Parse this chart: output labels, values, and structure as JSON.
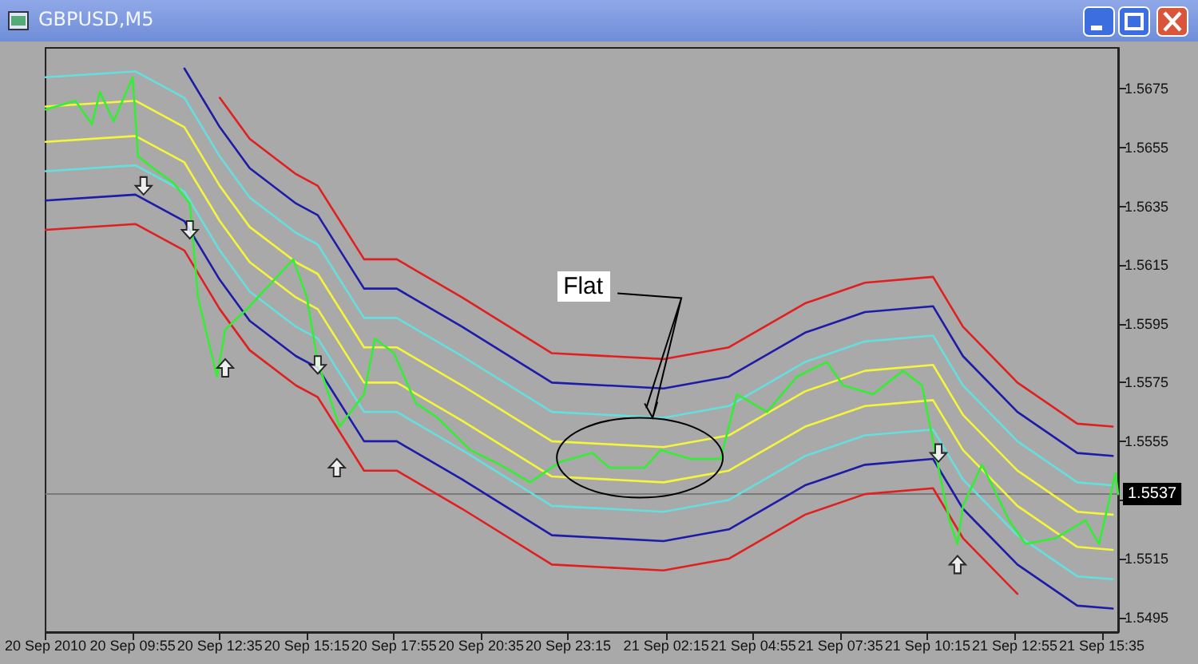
{
  "chart_data": {
    "type": "line",
    "title": "GBPUSD,M5",
    "xlim": [
      "2010-09-20T07:15",
      "2010-09-21T16:05"
    ],
    "xticks": [
      {
        "value": "2010-09-20T07:15",
        "label": "20 Sep 2010"
      },
      {
        "value": "2010-09-20T09:55",
        "label": "20 Sep 09:55"
      },
      {
        "value": "2010-09-20T12:35",
        "label": "20 Sep 12:35"
      },
      {
        "value": "2010-09-20T15:15",
        "label": "20 Sep 15:15"
      },
      {
        "value": "2010-09-20T17:55",
        "label": "20 Sep 17:55"
      },
      {
        "value": "2010-09-20T20:35",
        "label": "20 Sep 20:35"
      },
      {
        "value": "2010-09-20T23:15",
        "label": "20 Sep 23:15"
      },
      {
        "value": "2010-09-21T02:15",
        "label": "21 Sep 02:15"
      },
      {
        "value": "2010-09-21T04:55",
        "label": "21 Sep 04:55"
      },
      {
        "value": "2010-09-21T07:35",
        "label": "21 Sep 07:35"
      },
      {
        "value": "2010-09-21T10:15",
        "label": "21 Sep 10:15"
      },
      {
        "value": "2010-09-21T12:55",
        "label": "21 Sep 12:55"
      },
      {
        "value": "2010-09-21T15:35",
        "label": "21 Sep 15:35"
      }
    ],
    "ylim": [
      1.549,
      1.5689
    ],
    "yticks": [
      1.5495,
      1.5515,
      {
        "value": 1.5535,
        "label": null
      },
      1.5555,
      1.5575,
      1.5595,
      1.5615,
      1.5635,
      1.5655,
      1.5675
    ],
    "grid": false,
    "line_style": "solid",
    "series": [
      {
        "color": "#e02020",
        "x": [
          "2010-09-20T12:35",
          "2010-09-20T13:30",
          "2010-09-20T14:55",
          "2010-09-20T15:35",
          "2010-09-20T17:00",
          "2010-09-20T18:00",
          "2010-09-20T20:00",
          "2010-09-20T22:45",
          "2010-09-21T02:10",
          "2010-09-21T04:10",
          "2010-09-21T06:30",
          "2010-09-21T08:20",
          "2010-09-21T10:25",
          "2010-09-21T11:20",
          "2010-09-21T13:00",
          "2010-09-21T14:50",
          "2010-09-21T15:55"
        ],
        "values": [
          1.5672,
          1.5658,
          1.5646,
          1.5642,
          1.5617,
          1.5617,
          1.5604,
          1.5585,
          1.5583,
          1.5587,
          1.5602,
          1.5609,
          1.5611,
          1.5594,
          1.5575,
          1.5561,
          1.556
        ]
      },
      {
        "color": "#1c1ca8",
        "x": [
          "2010-09-20T11:30",
          "2010-09-20T12:35",
          "2010-09-20T13:30",
          "2010-09-20T14:55",
          "2010-09-20T15:35",
          "2010-09-20T17:00",
          "2010-09-20T18:00",
          "2010-09-20T20:00",
          "2010-09-20T22:45",
          "2010-09-21T02:10",
          "2010-09-21T04:10",
          "2010-09-21T06:30",
          "2010-09-21T08:20",
          "2010-09-21T10:25",
          "2010-09-21T11:20",
          "2010-09-21T13:00",
          "2010-09-21T14:50",
          "2010-09-21T15:55"
        ],
        "values": [
          1.5682,
          1.5662,
          1.5648,
          1.5636,
          1.5632,
          1.5607,
          1.5607,
          1.5594,
          1.5575,
          1.5573,
          1.5577,
          1.5592,
          1.5599,
          1.5601,
          1.5584,
          1.5565,
          1.5551,
          1.555
        ]
      },
      {
        "color": "#66dede",
        "x": [
          "2010-09-20T07:15",
          "2010-09-20T10:00",
          "2010-09-20T11:30",
          "2010-09-20T12:35",
          "2010-09-20T13:30",
          "2010-09-20T14:55",
          "2010-09-20T15:35",
          "2010-09-20T17:00",
          "2010-09-20T18:00",
          "2010-09-20T20:00",
          "2010-09-20T22:45",
          "2010-09-21T02:10",
          "2010-09-21T04:10",
          "2010-09-21T06:30",
          "2010-09-21T08:20",
          "2010-09-21T10:25",
          "2010-09-21T11:20",
          "2010-09-21T13:00",
          "2010-09-21T14:50",
          "2010-09-21T15:55"
        ],
        "values": [
          1.5679,
          1.5681,
          1.5672,
          1.5652,
          1.5638,
          1.5626,
          1.5622,
          1.5597,
          1.5597,
          1.5584,
          1.5565,
          1.5563,
          1.5567,
          1.5582,
          1.5589,
          1.5591,
          1.5574,
          1.5555,
          1.5541,
          1.554
        ]
      },
      {
        "color": "#f5f53c",
        "x": [
          "2010-09-20T07:15",
          "2010-09-20T10:00",
          "2010-09-20T11:30",
          "2010-09-20T12:35",
          "2010-09-20T13:30",
          "2010-09-20T14:55",
          "2010-09-20T15:35",
          "2010-09-20T17:00",
          "2010-09-20T18:00",
          "2010-09-20T20:00",
          "2010-09-20T22:45",
          "2010-09-21T02:10",
          "2010-09-21T04:10",
          "2010-09-21T06:30",
          "2010-09-21T08:20",
          "2010-09-21T10:25",
          "2010-09-21T11:20",
          "2010-09-21T13:00",
          "2010-09-21T14:50",
          "2010-09-21T15:55"
        ],
        "values": [
          1.5669,
          1.5671,
          1.5662,
          1.5642,
          1.5628,
          1.5616,
          1.5612,
          1.5587,
          1.5587,
          1.5574,
          1.5555,
          1.5553,
          1.5557,
          1.5572,
          1.5579,
          1.5581,
          1.5564,
          1.5545,
          1.5531,
          1.553
        ]
      },
      {
        "color": "#f5f53c",
        "x": [
          "2010-09-20T07:15",
          "2010-09-20T10:00",
          "2010-09-20T11:30",
          "2010-09-20T12:35",
          "2010-09-20T13:30",
          "2010-09-20T14:55",
          "2010-09-20T15:35",
          "2010-09-20T17:00",
          "2010-09-20T18:00",
          "2010-09-20T20:00",
          "2010-09-20T22:45",
          "2010-09-21T02:10",
          "2010-09-21T04:10",
          "2010-09-21T06:30",
          "2010-09-21T08:20",
          "2010-09-21T10:25",
          "2010-09-21T11:20",
          "2010-09-21T13:00",
          "2010-09-21T14:50",
          "2010-09-21T15:55"
        ],
        "values": [
          1.5657,
          1.5659,
          1.565,
          1.563,
          1.5616,
          1.5604,
          1.56,
          1.5575,
          1.5575,
          1.5562,
          1.5543,
          1.5541,
          1.5545,
          1.556,
          1.5567,
          1.5569,
          1.5552,
          1.5533,
          1.5519,
          1.5518
        ]
      },
      {
        "color": "#66dede",
        "x": [
          "2010-09-20T07:15",
          "2010-09-20T10:00",
          "2010-09-20T11:30",
          "2010-09-20T12:35",
          "2010-09-20T13:30",
          "2010-09-20T14:55",
          "2010-09-20T15:35",
          "2010-09-20T17:00",
          "2010-09-20T18:00",
          "2010-09-20T20:00",
          "2010-09-20T22:45",
          "2010-09-21T02:10",
          "2010-09-21T04:10",
          "2010-09-21T06:30",
          "2010-09-21T08:20",
          "2010-09-21T10:25",
          "2010-09-21T11:20",
          "2010-09-21T13:00",
          "2010-09-21T14:50",
          "2010-09-21T15:55"
        ],
        "values": [
          1.5647,
          1.5649,
          1.564,
          1.562,
          1.5606,
          1.5594,
          1.559,
          1.5565,
          1.5565,
          1.5552,
          1.5533,
          1.5531,
          1.5535,
          1.555,
          1.5557,
          1.5559,
          1.5542,
          1.5523,
          1.5509,
          1.5508
        ]
      },
      {
        "color": "#1c1ca8",
        "x": [
          "2010-09-20T07:15",
          "2010-09-20T10:00",
          "2010-09-20T11:30",
          "2010-09-20T12:35",
          "2010-09-20T13:30",
          "2010-09-20T14:55",
          "2010-09-20T15:35",
          "2010-09-20T17:00",
          "2010-09-20T18:00",
          "2010-09-20T20:00",
          "2010-09-20T22:45",
          "2010-09-21T02:10",
          "2010-09-21T04:10",
          "2010-09-21T06:30",
          "2010-09-21T08:20",
          "2010-09-21T10:25",
          "2010-09-21T11:20",
          "2010-09-21T13:00",
          "2010-09-21T14:50",
          "2010-09-21T15:55"
        ],
        "values": [
          1.5637,
          1.5639,
          1.563,
          1.561,
          1.5596,
          1.5584,
          1.558,
          1.5555,
          1.5555,
          1.5542,
          1.5523,
          1.5521,
          1.5525,
          1.554,
          1.5547,
          1.5549,
          1.5532,
          1.5513,
          1.5499,
          1.5498
        ]
      },
      {
        "color": "#e02020",
        "x": [
          "2010-09-20T07:15",
          "2010-09-20T10:00",
          "2010-09-20T11:30",
          "2010-09-20T12:35",
          "2010-09-20T13:30",
          "2010-09-20T14:55",
          "2010-09-20T15:35",
          "2010-09-20T17:00",
          "2010-09-20T18:00",
          "2010-09-20T20:00",
          "2010-09-20T22:45",
          "2010-09-21T02:10",
          "2010-09-21T04:10",
          "2010-09-21T06:30",
          "2010-09-21T08:20",
          "2010-09-21T10:25",
          "2010-09-21T11:20",
          "2010-09-21T13:00"
        ],
        "values": [
          1.5627,
          1.5629,
          1.562,
          1.56,
          1.5586,
          1.5574,
          1.557,
          1.5545,
          1.5545,
          1.5532,
          1.5513,
          1.5511,
          1.5515,
          1.553,
          1.5537,
          1.5539,
          1.5522,
          1.5503
        ]
      },
      {
        "color": "#33ee33",
        "x": [
          "2010-09-20T07:15",
          "2010-09-20T08:10",
          "2010-09-20T08:40",
          "2010-09-20T08:55",
          "2010-09-20T09:20",
          "2010-09-20T09:55",
          "2010-09-20T10:05",
          "2010-09-20T10:40",
          "2010-09-20T11:10",
          "2010-09-20T11:40",
          "2010-09-20T11:55",
          "2010-09-20T12:30",
          "2010-09-20T12:45",
          "2010-09-20T13:30",
          "2010-09-20T14:10",
          "2010-09-20T14:50",
          "2010-09-20T15:15",
          "2010-09-20T15:35",
          "2010-09-20T16:15",
          "2010-09-20T17:00",
          "2010-09-20T17:20",
          "2010-09-20T17:55",
          "2010-09-20T18:35",
          "2010-09-20T19:15",
          "2010-09-20T20:15",
          "2010-09-20T21:10",
          "2010-09-20T22:05",
          "2010-09-20T23:00",
          "2010-09-21T00:00",
          "2010-09-21T00:30",
          "2010-09-21T01:35",
          "2010-09-21T02:05",
          "2010-09-21T03:00",
          "2010-09-21T03:55",
          "2010-09-21T04:25",
          "2010-09-21T05:20",
          "2010-09-21T06:15",
          "2010-09-21T07:10",
          "2010-09-21T07:40",
          "2010-09-21T08:35",
          "2010-09-21T09:30",
          "2010-09-21T10:05",
          "2010-09-21T10:25",
          "2010-09-21T10:55",
          "2010-09-21T11:10",
          "2010-09-21T11:20",
          "2010-09-21T11:55",
          "2010-09-21T12:45",
          "2010-09-21T13:15",
          "2010-09-21T14:10",
          "2010-09-21T15:05",
          "2010-09-21T15:30",
          "2010-09-21T16:00",
          "2010-09-21T16:05"
        ],
        "values": [
          1.5668,
          1.5671,
          1.5663,
          1.5674,
          1.5664,
          1.5679,
          1.5652,
          1.5647,
          1.5643,
          1.5636,
          1.5604,
          1.5577,
          1.5593,
          1.5601,
          1.5609,
          1.5617,
          1.5604,
          1.5582,
          1.556,
          1.5571,
          1.559,
          1.5585,
          1.5568,
          1.5563,
          1.5552,
          1.5547,
          1.5541,
          1.5548,
          1.5551,
          1.5546,
          1.5546,
          1.5552,
          1.5549,
          1.5549,
          1.5571,
          1.5565,
          1.5577,
          1.5582,
          1.5574,
          1.5571,
          1.5579,
          1.5574,
          1.5555,
          1.5528,
          1.552,
          1.5533,
          1.5547,
          1.5528,
          1.552,
          1.5522,
          1.5528,
          1.552,
          1.5544,
          1.5537
        ]
      },
      {
        "type": "scatter",
        "color": "#000000",
        "x": [
          "2010-09-20T10:15",
          "2010-09-20T11:40",
          "2010-09-20T15:35",
          "2010-09-21T10:35"
        ],
        "values": [
          1.5642,
          1.5627,
          1.5581,
          1.5551
        ]
      },
      {
        "type": "scatter",
        "color": "#000000",
        "x": [
          "2010-09-20T12:45",
          "2010-09-20T16:10",
          "2010-09-21T11:10"
        ],
        "values": [
          1.558,
          1.5546,
          1.5513
        ]
      }
    ],
    "ref_lines": [
      {
        "axis": "y",
        "value": 1.5537,
        "label": "1.5537",
        "color": "#7a7a7a"
      }
    ],
    "annotations": [
      {
        "text": "Flat",
        "x": "2010-09-21T01:50",
        "y": 1.5563
      }
    ]
  }
}
